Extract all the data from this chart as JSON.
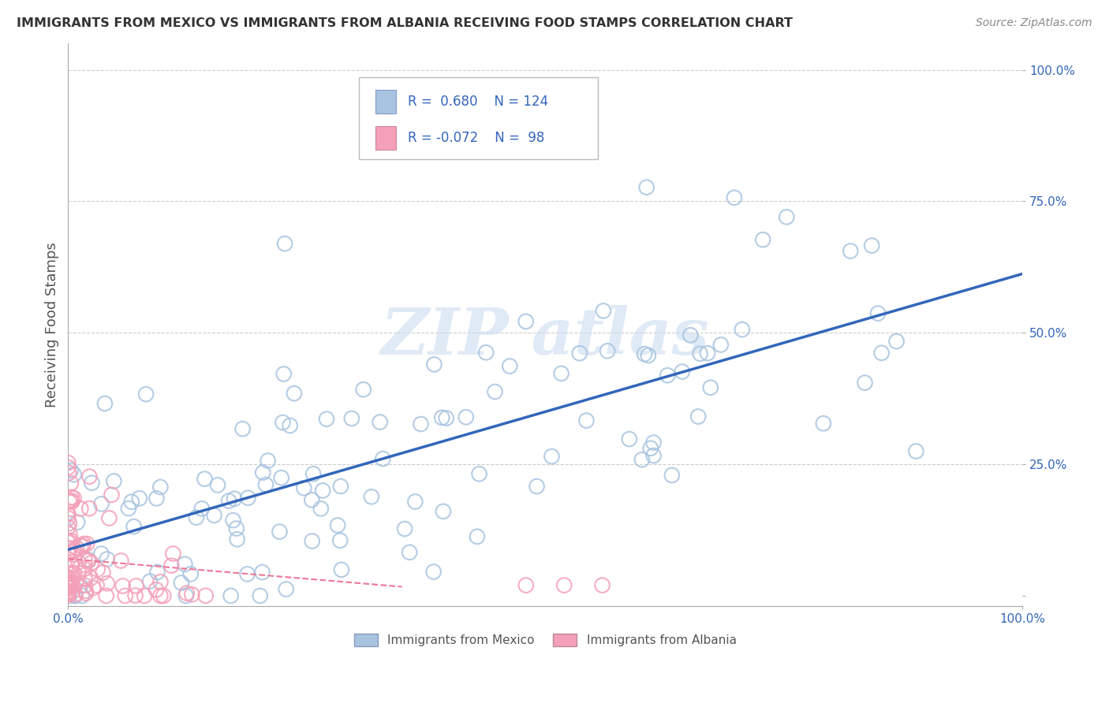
{
  "title": "IMMIGRANTS FROM MEXICO VS IMMIGRANTS FROM ALBANIA RECEIVING FOOD STAMPS CORRELATION CHART",
  "source": "Source: ZipAtlas.com",
  "ylabel": "Receiving Food Stamps",
  "legend_labels": [
    "Immigrants from Mexico",
    "Immigrants from Albania"
  ],
  "legend_R": [
    0.68,
    -0.072
  ],
  "legend_N": [
    124,
    98
  ],
  "mexico_color": "#a8c4e0",
  "albania_color": "#f4a0b8",
  "mexico_line_color": "#3366bb",
  "albania_line_color": "#ee7799",
  "watermark_color": "#ccddf0",
  "background_color": "#ffffff",
  "grid_color": "#cccccc",
  "title_color": "#333333",
  "axis_label_color": "#555555",
  "legend_text_color": "#3366bb",
  "ytick_color": "#3366bb",
  "xtick_color": "#3366bb"
}
